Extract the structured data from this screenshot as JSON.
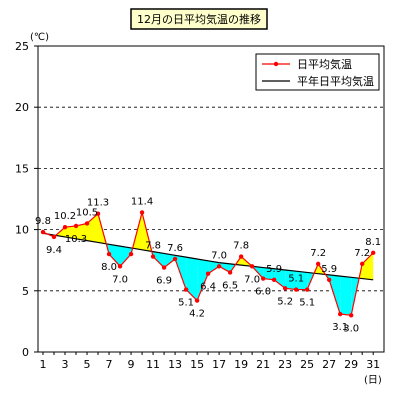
{
  "chart_data": {
    "type": "line",
    "title": "12月の日平均気温の推移",
    "ylabel": "(℃)",
    "xlabel": "(日)",
    "ylim": [
      0,
      25
    ],
    "yticks": [
      0,
      5,
      10,
      15,
      20,
      25
    ],
    "xticks": [
      1,
      3,
      5,
      7,
      9,
      11,
      13,
      15,
      17,
      19,
      21,
      23,
      25,
      27,
      29,
      31
    ],
    "grid": "dashed horizontal",
    "legend_position": "top-right",
    "x": [
      1,
      2,
      3,
      4,
      5,
      6,
      7,
      8,
      9,
      10,
      11,
      12,
      13,
      14,
      15,
      16,
      17,
      18,
      19,
      20,
      21,
      22,
      23,
      24,
      25,
      26,
      27,
      28,
      29,
      30,
      31
    ],
    "series": [
      {
        "name": "日平均気温",
        "color": "#ff0000",
        "values": [
          9.8,
          9.4,
          10.2,
          10.3,
          10.5,
          11.3,
          8.0,
          7.0,
          8.0,
          11.4,
          7.8,
          6.9,
          7.6,
          5.1,
          4.2,
          6.4,
          7.0,
          6.5,
          7.8,
          7.0,
          6.0,
          5.9,
          5.2,
          5.1,
          5.1,
          7.2,
          5.9,
          3.1,
          3.0,
          7.2,
          8.1
        ]
      },
      {
        "name": "平年日平均気温",
        "color": "#000000",
        "values": [
          9.7,
          9.55,
          9.4,
          9.25,
          9.1,
          8.95,
          8.8,
          8.65,
          8.5,
          8.35,
          8.2,
          8.05,
          7.9,
          7.75,
          7.6,
          7.45,
          7.3,
          7.2,
          7.1,
          7.0,
          6.9,
          6.8,
          6.7,
          6.6,
          6.5,
          6.4,
          6.3,
          6.2,
          6.1,
          6.0,
          5.9
        ]
      }
    ],
    "labels": [
      "9.8",
      "9.4",
      "10.2",
      "10.3",
      "10.5",
      "11.3",
      "8.0",
      "7.0",
      "",
      "11.4",
      "7.8",
      "6.9",
      "7.6",
      "5.1",
      "4.2",
      "6.4",
      "7.0",
      "6.5",
      "7.8",
      "7.0",
      "6.0",
      "5.9",
      "5.2",
      "5.1",
      "5.1",
      "7.2",
      "5.9",
      "3.1",
      "3.0",
      "7.2",
      "8.1"
    ],
    "label_side": [
      "a",
      "b",
      "a",
      "b",
      "a",
      "a",
      "b",
      "b",
      "",
      "a",
      "a",
      "b",
      "a",
      "b",
      "b",
      "b",
      "a",
      "b",
      "a",
      "b",
      "b",
      "a",
      "b",
      "a",
      "b",
      "a",
      "a",
      "b",
      "b",
      "a",
      "a"
    ],
    "fill_above_color": "#ffff00",
    "fill_below_color": "#00ffff"
  }
}
